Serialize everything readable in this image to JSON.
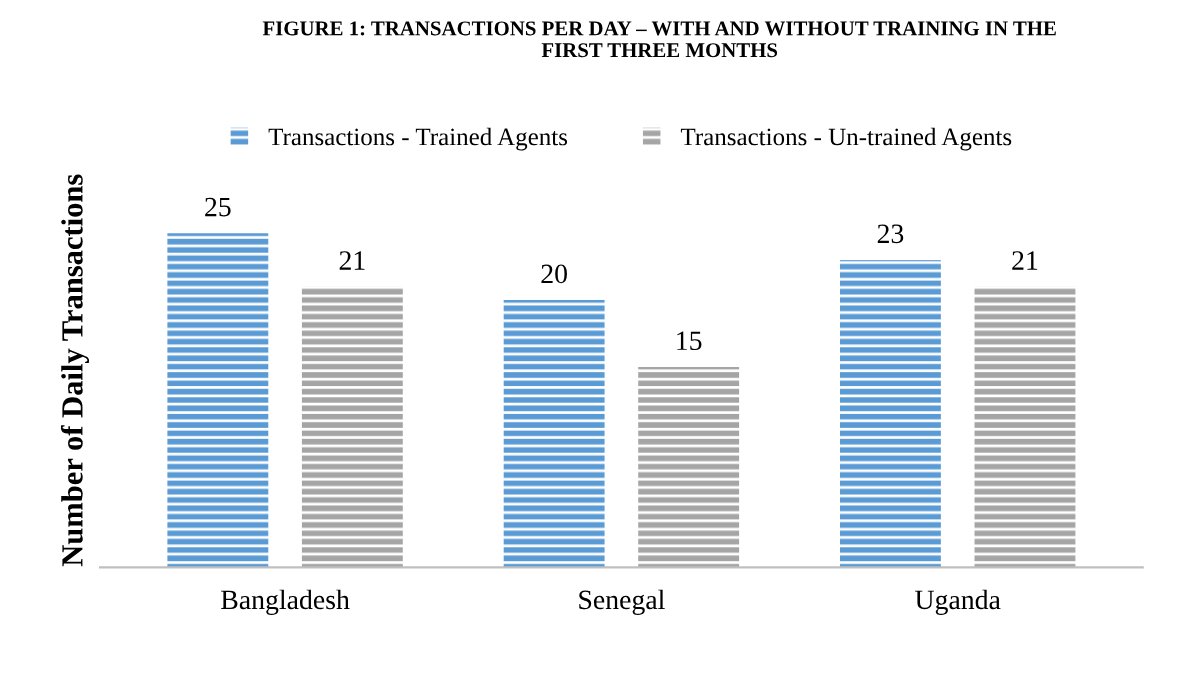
{
  "chart_data": {
    "type": "bar",
    "title": "FIGURE 1: TRANSACTIONS PER DAY – WITH AND WITHOUT TRAINING IN THE FIRST THREE MONTHS",
    "ylabel": "Number of Daily Transactions",
    "categories": [
      "Bangladesh",
      "Senegal",
      "Uganda"
    ],
    "series": [
      {
        "name": "Transactions - Trained Agents",
        "color": "#5b9bd5",
        "values": [
          25,
          20,
          23
        ]
      },
      {
        "name": "Transactions - Un-trained Agents",
        "color": "#a5a5a5",
        "values": [
          21,
          15,
          21
        ]
      }
    ],
    "data_labels": true,
    "legend": "top"
  }
}
